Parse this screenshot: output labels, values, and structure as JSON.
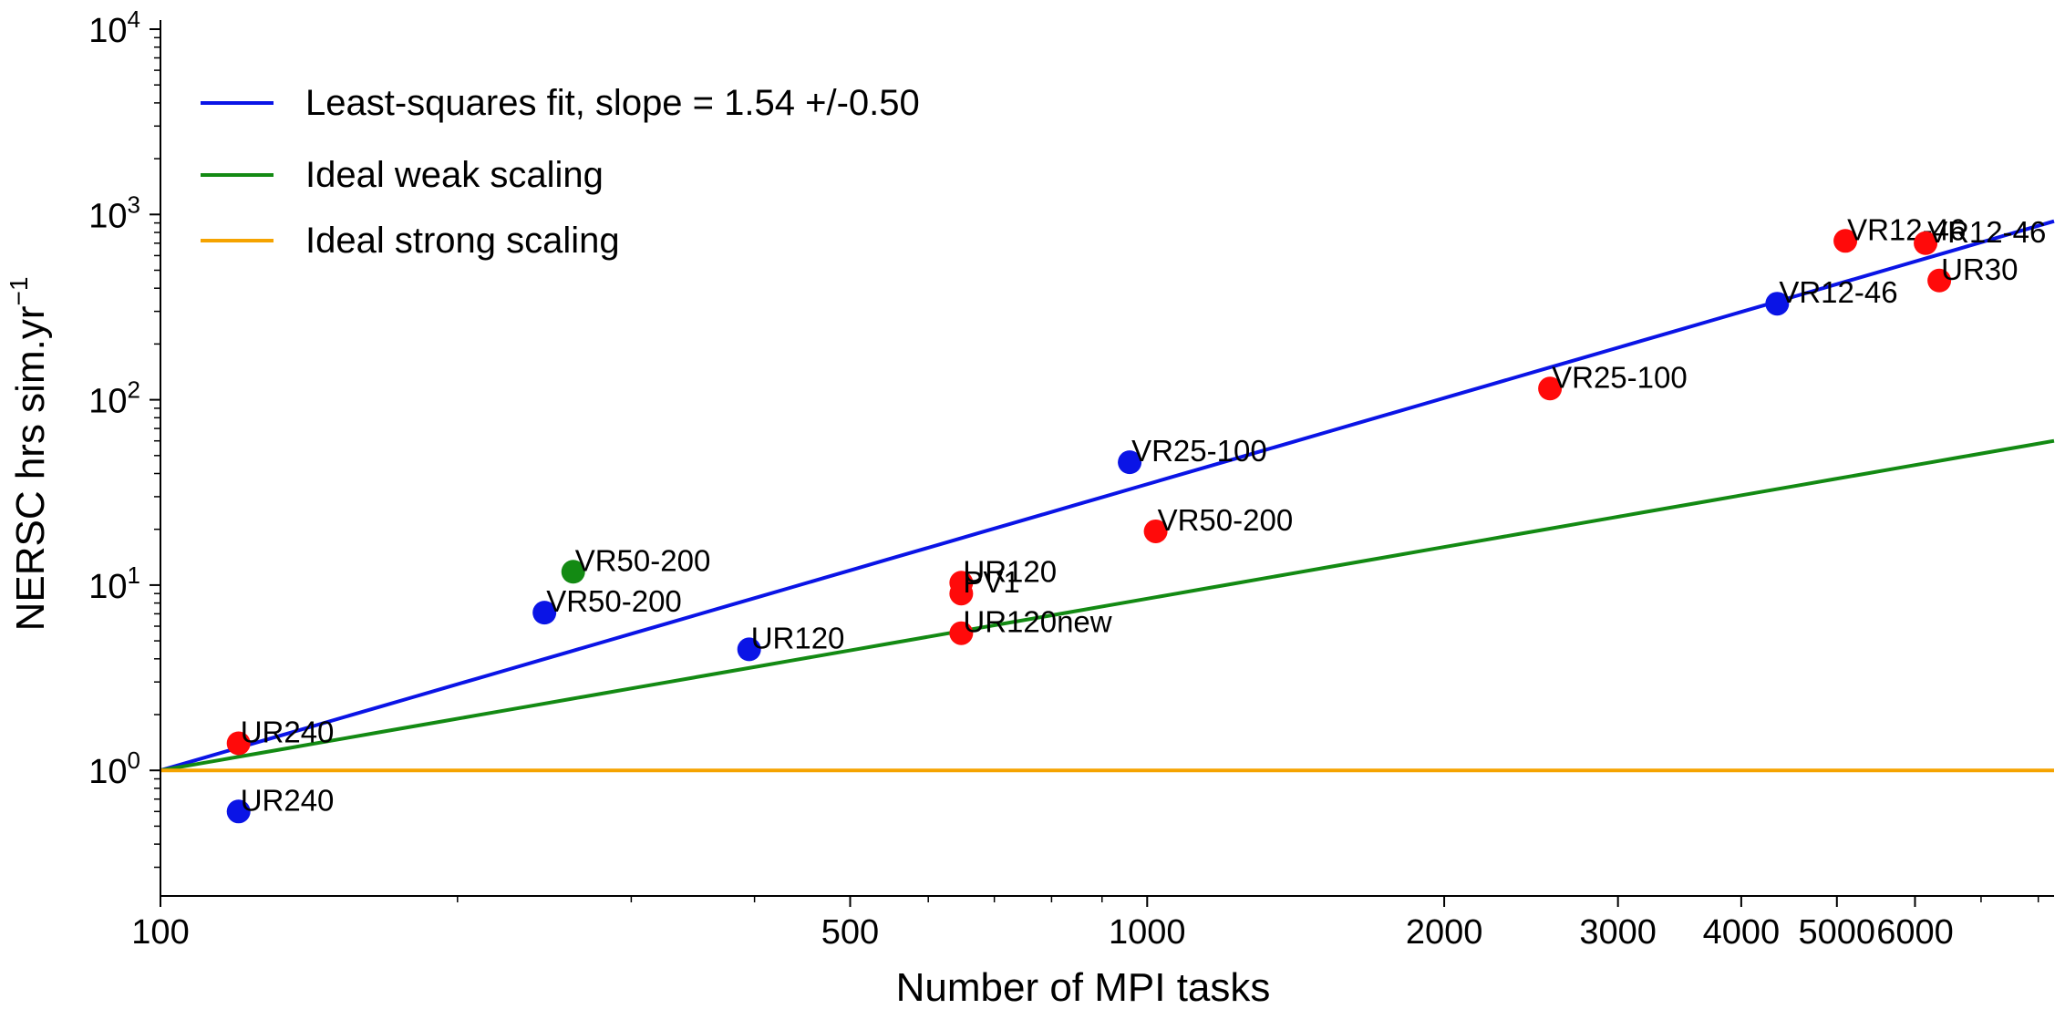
{
  "chart_data": {
    "type": "scatter",
    "title": "",
    "xlabel": "Number of MPI tasks",
    "ylabel": {
      "base": "NERSC hrs sim.yr",
      "sup": "−1"
    },
    "xscale": "log",
    "yscale": "log",
    "xlim": [
      100,
      8300
    ],
    "ylim": [
      0.21,
      10000
    ],
    "x_ticks": [
      {
        "value": 100,
        "label": "100"
      },
      {
        "value": 500,
        "label": "500"
      },
      {
        "value": 1000,
        "label": "1000"
      },
      {
        "value": 2000,
        "label": "2000"
      },
      {
        "value": 3000,
        "label": "3000"
      },
      {
        "value": 4000,
        "label": "4000"
      },
      {
        "value": 5000,
        "label": "5000"
      },
      {
        "value": 6000,
        "label": "6000"
      }
    ],
    "y_ticks": [
      {
        "value": 1,
        "base": "10",
        "exp": "0"
      },
      {
        "value": 10,
        "base": "10",
        "exp": "1"
      },
      {
        "value": 100,
        "base": "10",
        "exp": "2"
      },
      {
        "value": 1000,
        "base": "10",
        "exp": "3"
      },
      {
        "value": 10000,
        "base": "10",
        "exp": "4"
      }
    ],
    "grid": false,
    "legend_position": "top-left",
    "lines": [
      {
        "name": "Least-squares fit, slope = 1.54 +/-0.50",
        "color": "#0a14e6",
        "x": [
          100,
          8300
        ],
        "y": [
          1.0,
          920
        ]
      },
      {
        "name": "Ideal weak scaling",
        "color": "#138a13",
        "x": [
          100,
          8300
        ],
        "y": [
          1.0,
          60
        ]
      },
      {
        "name": "Ideal strong scaling",
        "color": "#f5a300",
        "x": [
          100,
          8300
        ],
        "y": [
          1.0,
          1.0
        ]
      }
    ],
    "points": [
      {
        "label": "UR240",
        "x": 120,
        "y": 1.4,
        "color": "#ff0a0a"
      },
      {
        "label": "UR240",
        "x": 120,
        "y": 0.6,
        "color": "#0a14e6"
      },
      {
        "label": "VR50-200",
        "x": 245,
        "y": 7.1,
        "color": "#0a14e6"
      },
      {
        "label": "VR50-200",
        "x": 262,
        "y": 11.8,
        "color": "#138a13"
      },
      {
        "label": "UR120",
        "x": 395,
        "y": 4.5,
        "color": "#0a14e6"
      },
      {
        "label": "UR120",
        "x": 648,
        "y": 10.3,
        "color": "#ff0a0a"
      },
      {
        "label": "PV1",
        "x": 648,
        "y": 9.0,
        "color": "#ff0a0a"
      },
      {
        "label": "UR120new",
        "x": 648,
        "y": 5.5,
        "color": "#ff0a0a"
      },
      {
        "label": "VR25-100",
        "x": 960,
        "y": 46,
        "color": "#0a14e6"
      },
      {
        "label": "VR50-200",
        "x": 1020,
        "y": 19.5,
        "color": "#ff0a0a"
      },
      {
        "label": "VR25-100",
        "x": 2560,
        "y": 115,
        "color": "#ff0a0a"
      },
      {
        "label": "VR12-46",
        "x": 4350,
        "y": 330,
        "color": "#0a14e6"
      },
      {
        "label": "VR12-46",
        "x": 5100,
        "y": 720,
        "color": "#ff0a0a"
      },
      {
        "label": "VR12-46",
        "x": 6150,
        "y": 700,
        "color": "#ff0a0a"
      },
      {
        "label": "UR30",
        "x": 6350,
        "y": 440,
        "color": "#ff0a0a"
      }
    ]
  }
}
